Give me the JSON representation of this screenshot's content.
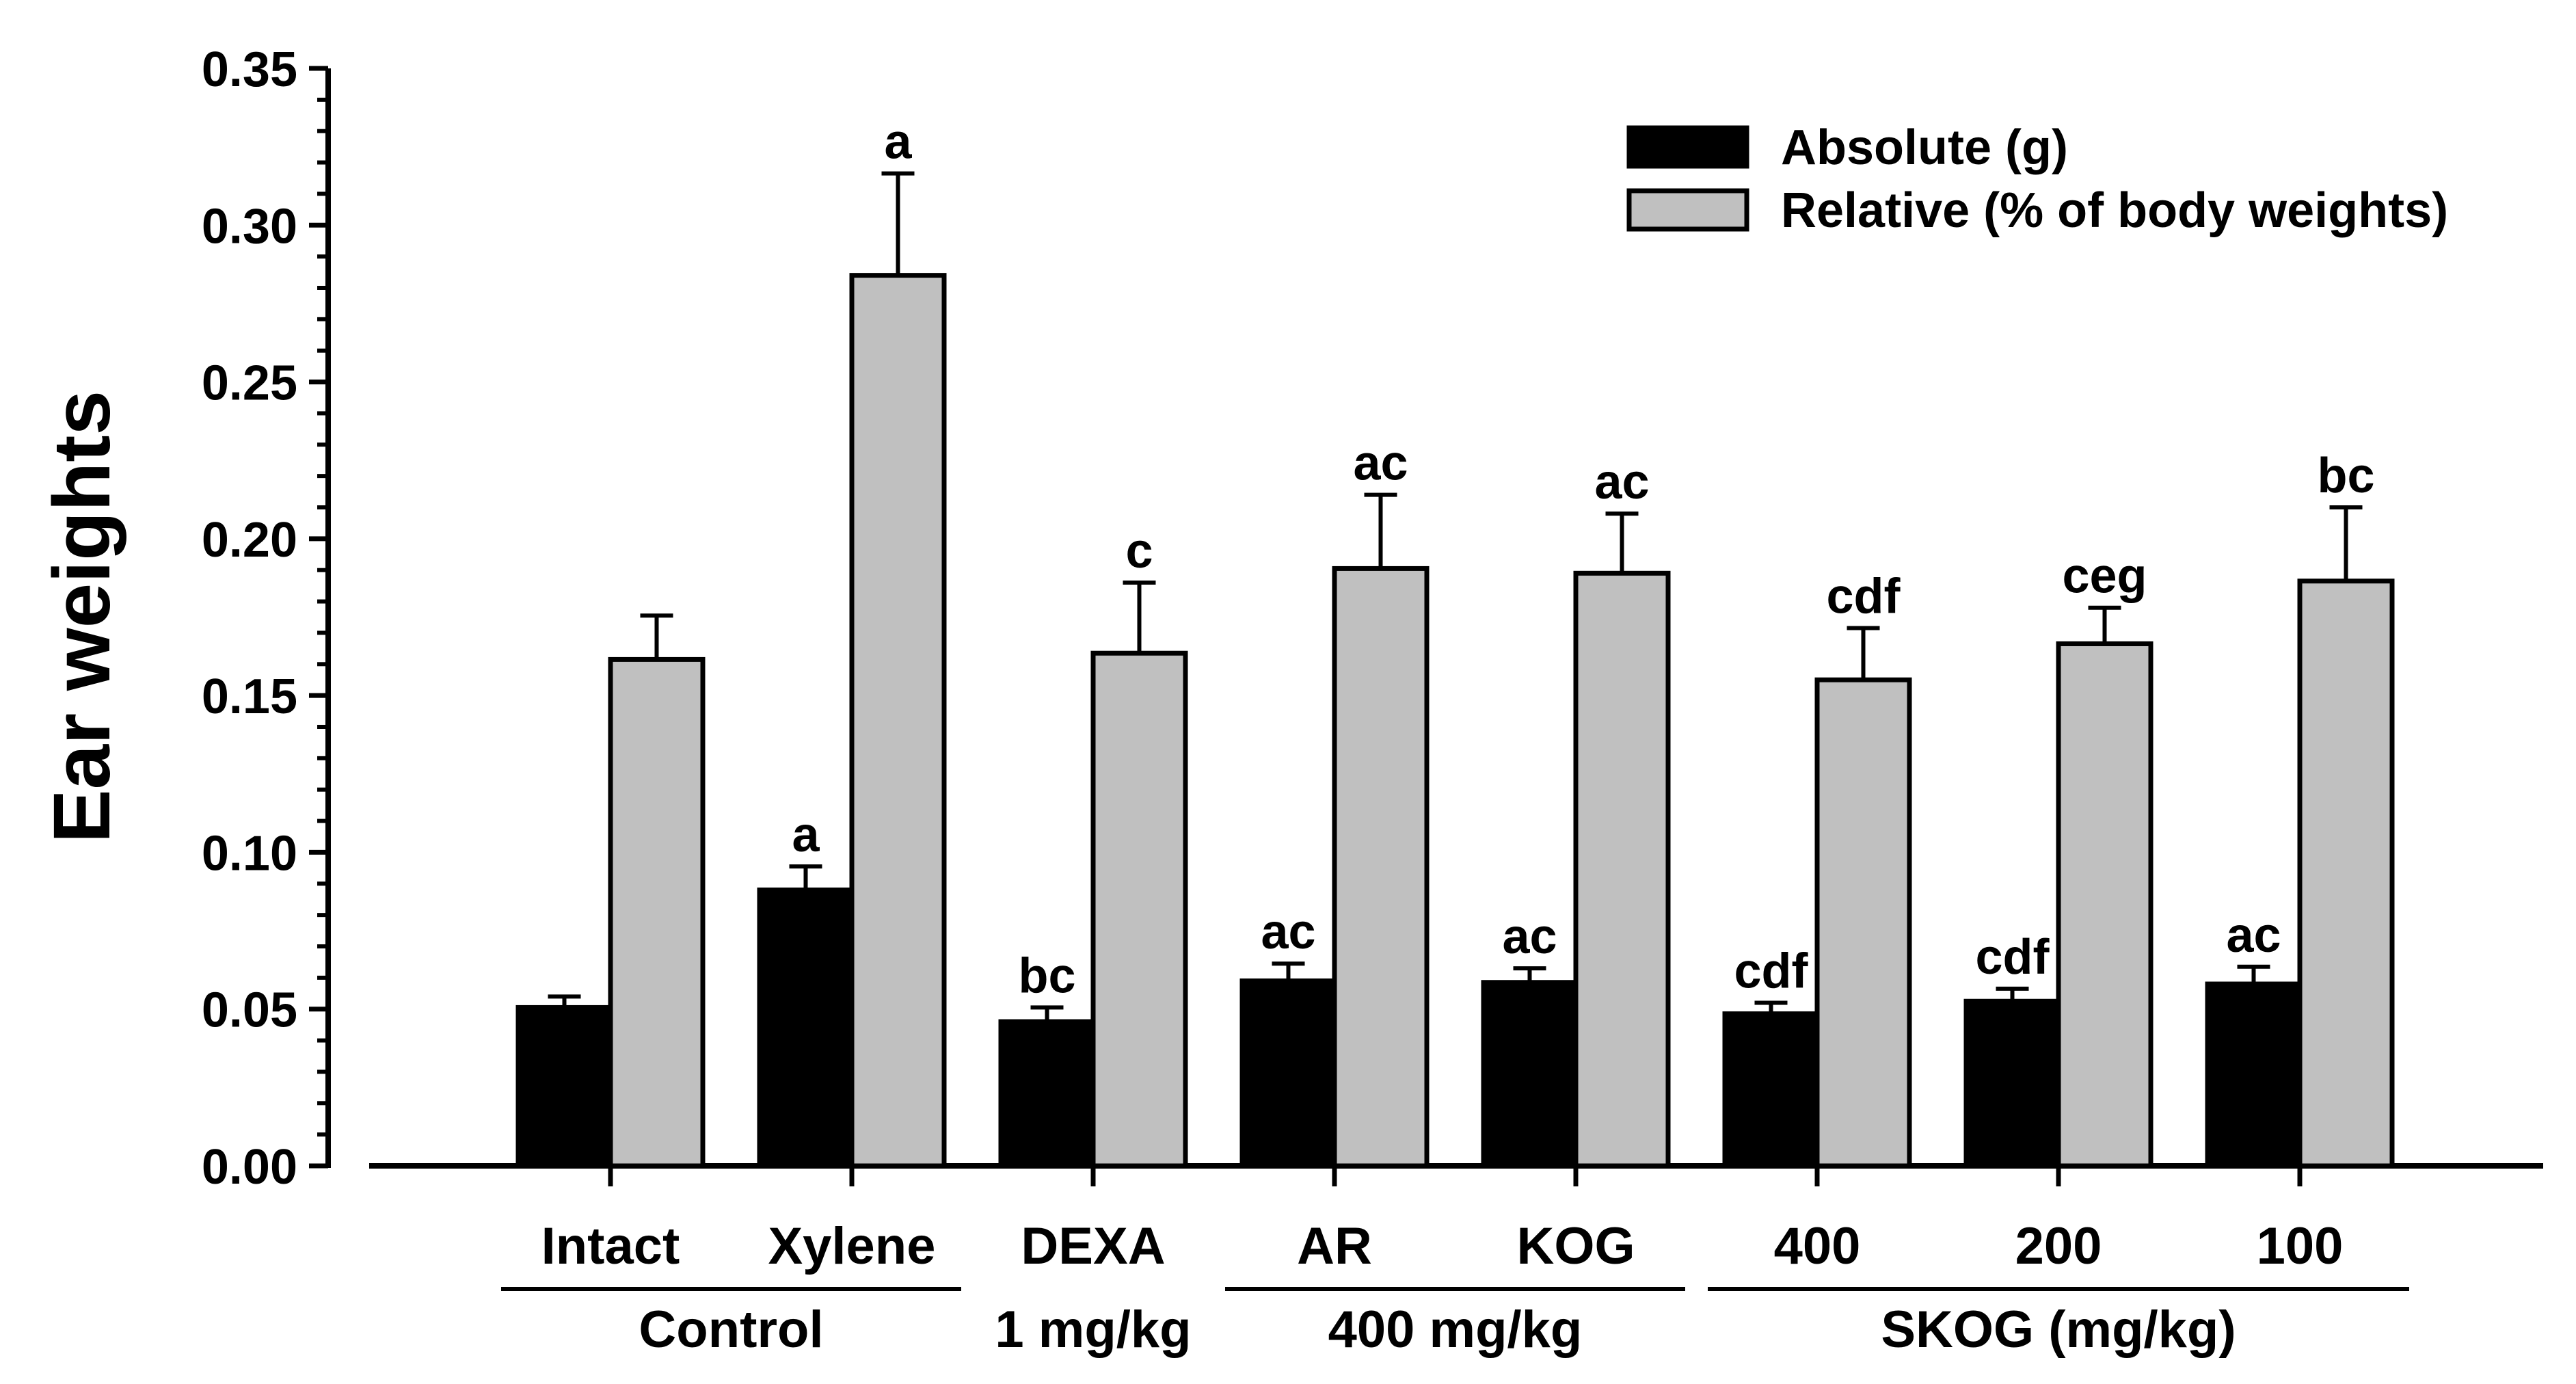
{
  "chart_data": {
    "type": "bar",
    "ylabel": "Ear weights",
    "ylim": [
      0,
      0.35
    ],
    "yticks": [
      "0.00",
      "0.05",
      "0.10",
      "0.15",
      "0.20",
      "0.25",
      "0.30",
      "0.35"
    ],
    "categories": [
      "Intact",
      "Xylene",
      "DEXA",
      "AR",
      "KOG",
      "400",
      "200",
      "100"
    ],
    "group_labels": [
      {
        "label": "Control",
        "from": 0,
        "to": 1,
        "line": true
      },
      {
        "label": "1 mg/kg",
        "from": 2,
        "to": 2,
        "line": false
      },
      {
        "label": "400 mg/kg",
        "from": 3,
        "to": 4,
        "line": true
      },
      {
        "label": "SKOG (mg/kg)",
        "from": 5,
        "to": 7,
        "line": true
      }
    ],
    "series": [
      {
        "name": "Absolute (g)",
        "color": "#000000",
        "values": [
          0.0505,
          0.088,
          0.046,
          0.059,
          0.0585,
          0.0485,
          0.0525,
          0.058
        ],
        "errors": [
          0.0035,
          0.0075,
          0.0045,
          0.0055,
          0.0045,
          0.0035,
          0.004,
          0.0055
        ],
        "annotations": [
          "",
          "a",
          "bc",
          "ac",
          "ac",
          "cdf",
          "cdf",
          "ac"
        ]
      },
      {
        "name": "Relative (% of body weights)",
        "color": "#c0c0c0",
        "values": [
          0.1615,
          0.284,
          0.1635,
          0.1905,
          0.189,
          0.155,
          0.1665,
          0.1865
        ],
        "errors": [
          0.014,
          0.0325,
          0.0225,
          0.0235,
          0.019,
          0.0165,
          0.0115,
          0.0235
        ],
        "annotations": [
          "",
          "a",
          "c",
          "ac",
          "ac",
          "cdf",
          "ceg",
          "bc"
        ]
      }
    ],
    "legend_position": "top-right",
    "grid": false
  }
}
